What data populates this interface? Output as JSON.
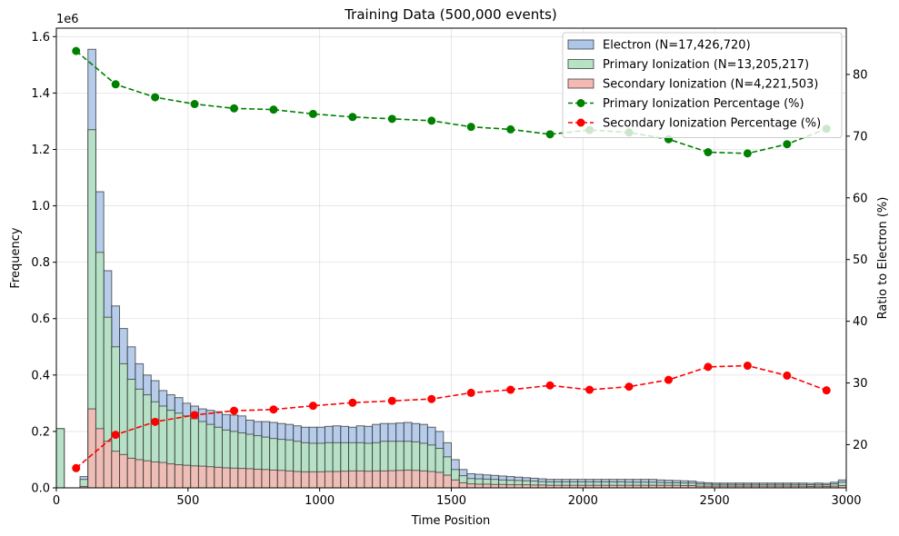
{
  "chart_data": {
    "type": "bar",
    "title": "Training Data (500,000 events)",
    "xlabel": "Time Position",
    "ylabel": "Frequency",
    "ylabel_right": "Ratio to Electron (%)",
    "y_offset_text": "1e6",
    "xlim": [
      0,
      3000
    ],
    "ylim": [
      0,
      1.63
    ],
    "ylim_right": [
      13,
      87.5
    ],
    "x_ticks": [
      0,
      500,
      1000,
      1500,
      2000,
      2500,
      3000
    ],
    "x_tick_labels": [
      "0",
      "500",
      "1000",
      "1500",
      "2000",
      "2500",
      "3000"
    ],
    "y_ticks": [
      0,
      0.2,
      0.4,
      0.6,
      0.8,
      1.0,
      1.2,
      1.4,
      1.6
    ],
    "y_tick_labels": [
      "0.0",
      "0.2",
      "0.4",
      "0.6",
      "0.8",
      "1.0",
      "1.2",
      "1.4",
      "1.6"
    ],
    "y_right_ticks": [
      20,
      30,
      40,
      50,
      60,
      70,
      80
    ],
    "y_right_tick_labels": [
      "20",
      "30",
      "40",
      "50",
      "60",
      "70",
      "80"
    ],
    "grid": true,
    "legend_position": "top-right",
    "bin_width": 30,
    "bin_starts": [
      0,
      30,
      60,
      90,
      120,
      150,
      180,
      210,
      240,
      270,
      300,
      330,
      360,
      390,
      420,
      450,
      480,
      510,
      540,
      570,
      600,
      630,
      660,
      690,
      720,
      750,
      780,
      810,
      840,
      870,
      900,
      930,
      960,
      990,
      1020,
      1050,
      1080,
      1110,
      1140,
      1170,
      1200,
      1230,
      1260,
      1290,
      1320,
      1350,
      1380,
      1410,
      1440,
      1470,
      1500,
      1530,
      1560,
      1590,
      1620,
      1650,
      1680,
      1710,
      1740,
      1770,
      1800,
      1830,
      1860,
      1890,
      1920,
      1950,
      1980,
      2010,
      2040,
      2070,
      2100,
      2130,
      2160,
      2190,
      2220,
      2250,
      2280,
      2310,
      2340,
      2370,
      2400,
      2430,
      2460,
      2490,
      2520,
      2550,
      2580,
      2610,
      2640,
      2670,
      2700,
      2730,
      2760,
      2790,
      2820,
      2850,
      2880,
      2910,
      2940,
      2970
    ],
    "series": [
      {
        "name": "Electron (N=17,426,720)",
        "kind": "histogram",
        "fill": "#aec7e8",
        "values": [
          0.21,
          0,
          0,
          0.04,
          1.555,
          1.05,
          0.77,
          0.645,
          0.565,
          0.5,
          0.44,
          0.4,
          0.38,
          0.345,
          0.33,
          0.32,
          0.3,
          0.29,
          0.28,
          0.275,
          0.27,
          0.26,
          0.258,
          0.255,
          0.24,
          0.235,
          0.235,
          0.232,
          0.228,
          0.225,
          0.22,
          0.215,
          0.215,
          0.215,
          0.218,
          0.22,
          0.218,
          0.215,
          0.22,
          0.218,
          0.225,
          0.228,
          0.228,
          0.23,
          0.232,
          0.228,
          0.225,
          0.215,
          0.2,
          0.16,
          0.1,
          0.065,
          0.05,
          0.048,
          0.046,
          0.044,
          0.042,
          0.04,
          0.038,
          0.036,
          0.034,
          0.032,
          0.03,
          0.03,
          0.03,
          0.03,
          0.03,
          0.03,
          0.03,
          0.03,
          0.03,
          0.03,
          0.03,
          0.03,
          0.03,
          0.03,
          0.028,
          0.027,
          0.026,
          0.025,
          0.024,
          0.02,
          0.018,
          0.017,
          0.017,
          0.017,
          0.017,
          0.017,
          0.017,
          0.017,
          0.017,
          0.017,
          0.017,
          0.017,
          0.017,
          0.016,
          0.017,
          0.016,
          0.02,
          0.028
        ]
      },
      {
        "name": "Primary Ionization (N=13,205,217)",
        "kind": "histogram",
        "fill": "#b6e3c3",
        "values": [
          0.21,
          0,
          0,
          0.03,
          1.27,
          0.835,
          0.605,
          0.5,
          0.44,
          0.385,
          0.35,
          0.33,
          0.305,
          0.29,
          0.275,
          0.265,
          0.255,
          0.245,
          0.235,
          0.225,
          0.215,
          0.205,
          0.2,
          0.195,
          0.19,
          0.185,
          0.18,
          0.175,
          0.172,
          0.17,
          0.165,
          0.16,
          0.158,
          0.158,
          0.16,
          0.16,
          0.16,
          0.16,
          0.16,
          0.158,
          0.16,
          0.165,
          0.165,
          0.165,
          0.165,
          0.163,
          0.158,
          0.152,
          0.14,
          0.11,
          0.065,
          0.043,
          0.033,
          0.032,
          0.031,
          0.03,
          0.028,
          0.027,
          0.026,
          0.025,
          0.024,
          0.022,
          0.021,
          0.021,
          0.021,
          0.021,
          0.021,
          0.021,
          0.021,
          0.021,
          0.021,
          0.021,
          0.02,
          0.02,
          0.02,
          0.02,
          0.019,
          0.018,
          0.018,
          0.017,
          0.017,
          0.014,
          0.013,
          0.012,
          0.012,
          0.012,
          0.012,
          0.012,
          0.012,
          0.012,
          0.012,
          0.012,
          0.012,
          0.012,
          0.012,
          0.011,
          0.012,
          0.011,
          0.014,
          0.02
        ]
      },
      {
        "name": "Secondary Ionization (N=4,221,503)",
        "kind": "histogram",
        "fill": "#f4b9b3",
        "values": [
          0,
          0,
          0,
          0.005,
          0.28,
          0.21,
          0.165,
          0.13,
          0.118,
          0.105,
          0.1,
          0.096,
          0.092,
          0.09,
          0.085,
          0.082,
          0.08,
          0.078,
          0.077,
          0.075,
          0.073,
          0.071,
          0.07,
          0.069,
          0.068,
          0.066,
          0.065,
          0.063,
          0.062,
          0.06,
          0.058,
          0.057,
          0.057,
          0.057,
          0.058,
          0.058,
          0.059,
          0.06,
          0.06,
          0.059,
          0.06,
          0.06,
          0.061,
          0.062,
          0.063,
          0.062,
          0.06,
          0.058,
          0.055,
          0.045,
          0.028,
          0.018,
          0.014,
          0.013,
          0.013,
          0.012,
          0.012,
          0.011,
          0.011,
          0.011,
          0.01,
          0.01,
          0.009,
          0.009,
          0.009,
          0.009,
          0.009,
          0.009,
          0.009,
          0.009,
          0.009,
          0.009,
          0.009,
          0.009,
          0.009,
          0.009,
          0.009,
          0.009,
          0.009,
          0.008,
          0.008,
          0.006,
          0.006,
          0.006,
          0.006,
          0.006,
          0.006,
          0.006,
          0.006,
          0.006,
          0.006,
          0.006,
          0.006,
          0.006,
          0.006,
          0.005,
          0.006,
          0.005,
          0.006,
          0.008
        ]
      },
      {
        "name": "Primary Ionization Percentage (%)",
        "kind": "line",
        "axis": "right",
        "color": "#008000",
        "x": [
          75,
          225,
          375,
          525,
          675,
          825,
          975,
          1125,
          1275,
          1425,
          1575,
          1725,
          1875,
          2025,
          2175,
          2325,
          2475,
          2625,
          2775,
          2925
        ],
        "values": [
          83.8,
          78.4,
          76.3,
          75.2,
          74.5,
          74.3,
          73.6,
          73.1,
          72.8,
          72.5,
          71.5,
          71.1,
          70.3,
          71.0,
          70.6,
          69.5,
          67.4,
          67.2,
          68.7,
          71.2
        ]
      },
      {
        "name": "Secondary Ionization Percentage (%)",
        "kind": "line",
        "axis": "right",
        "color": "#ff0000",
        "x": [
          75,
          225,
          375,
          525,
          675,
          825,
          975,
          1125,
          1275,
          1425,
          1575,
          1725,
          1875,
          2025,
          2175,
          2325,
          2475,
          2625,
          2775,
          2925
        ],
        "values": [
          16.2,
          21.6,
          23.7,
          24.8,
          25.5,
          25.7,
          26.3,
          26.8,
          27.1,
          27.4,
          28.4,
          28.9,
          29.6,
          28.9,
          29.4,
          30.5,
          32.6,
          32.8,
          31.2,
          28.8
        ]
      }
    ]
  }
}
